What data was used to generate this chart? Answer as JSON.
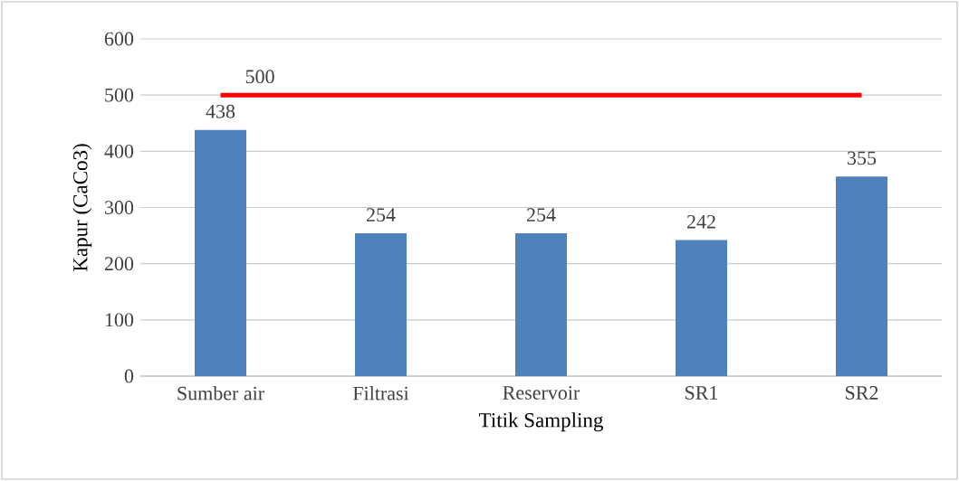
{
  "chart_data": {
    "type": "bar",
    "xlabel": "Titik Sampling",
    "ylabel": "Kapur (CaCo3)",
    "categories": [
      "Sumber air",
      "Filtrasi",
      "Reservoir",
      "SR1",
      "SR2"
    ],
    "series": [
      {
        "color": "#4f81bd",
        "values": [
          438,
          254,
          254,
          242,
          355
        ],
        "value_labels": [
          "438",
          "254",
          "254",
          "242",
          "355"
        ]
      },
      {
        "type": "line",
        "color": "#ff0000",
        "values": [
          500,
          500,
          500,
          500,
          500
        ],
        "value_labels": [
          "500",
          null,
          null,
          null,
          null
        ]
      }
    ],
    "ylim": [
      0,
      600
    ],
    "yticks": [
      0,
      100,
      200,
      300,
      400,
      500,
      600
    ],
    "grid": "y"
  }
}
